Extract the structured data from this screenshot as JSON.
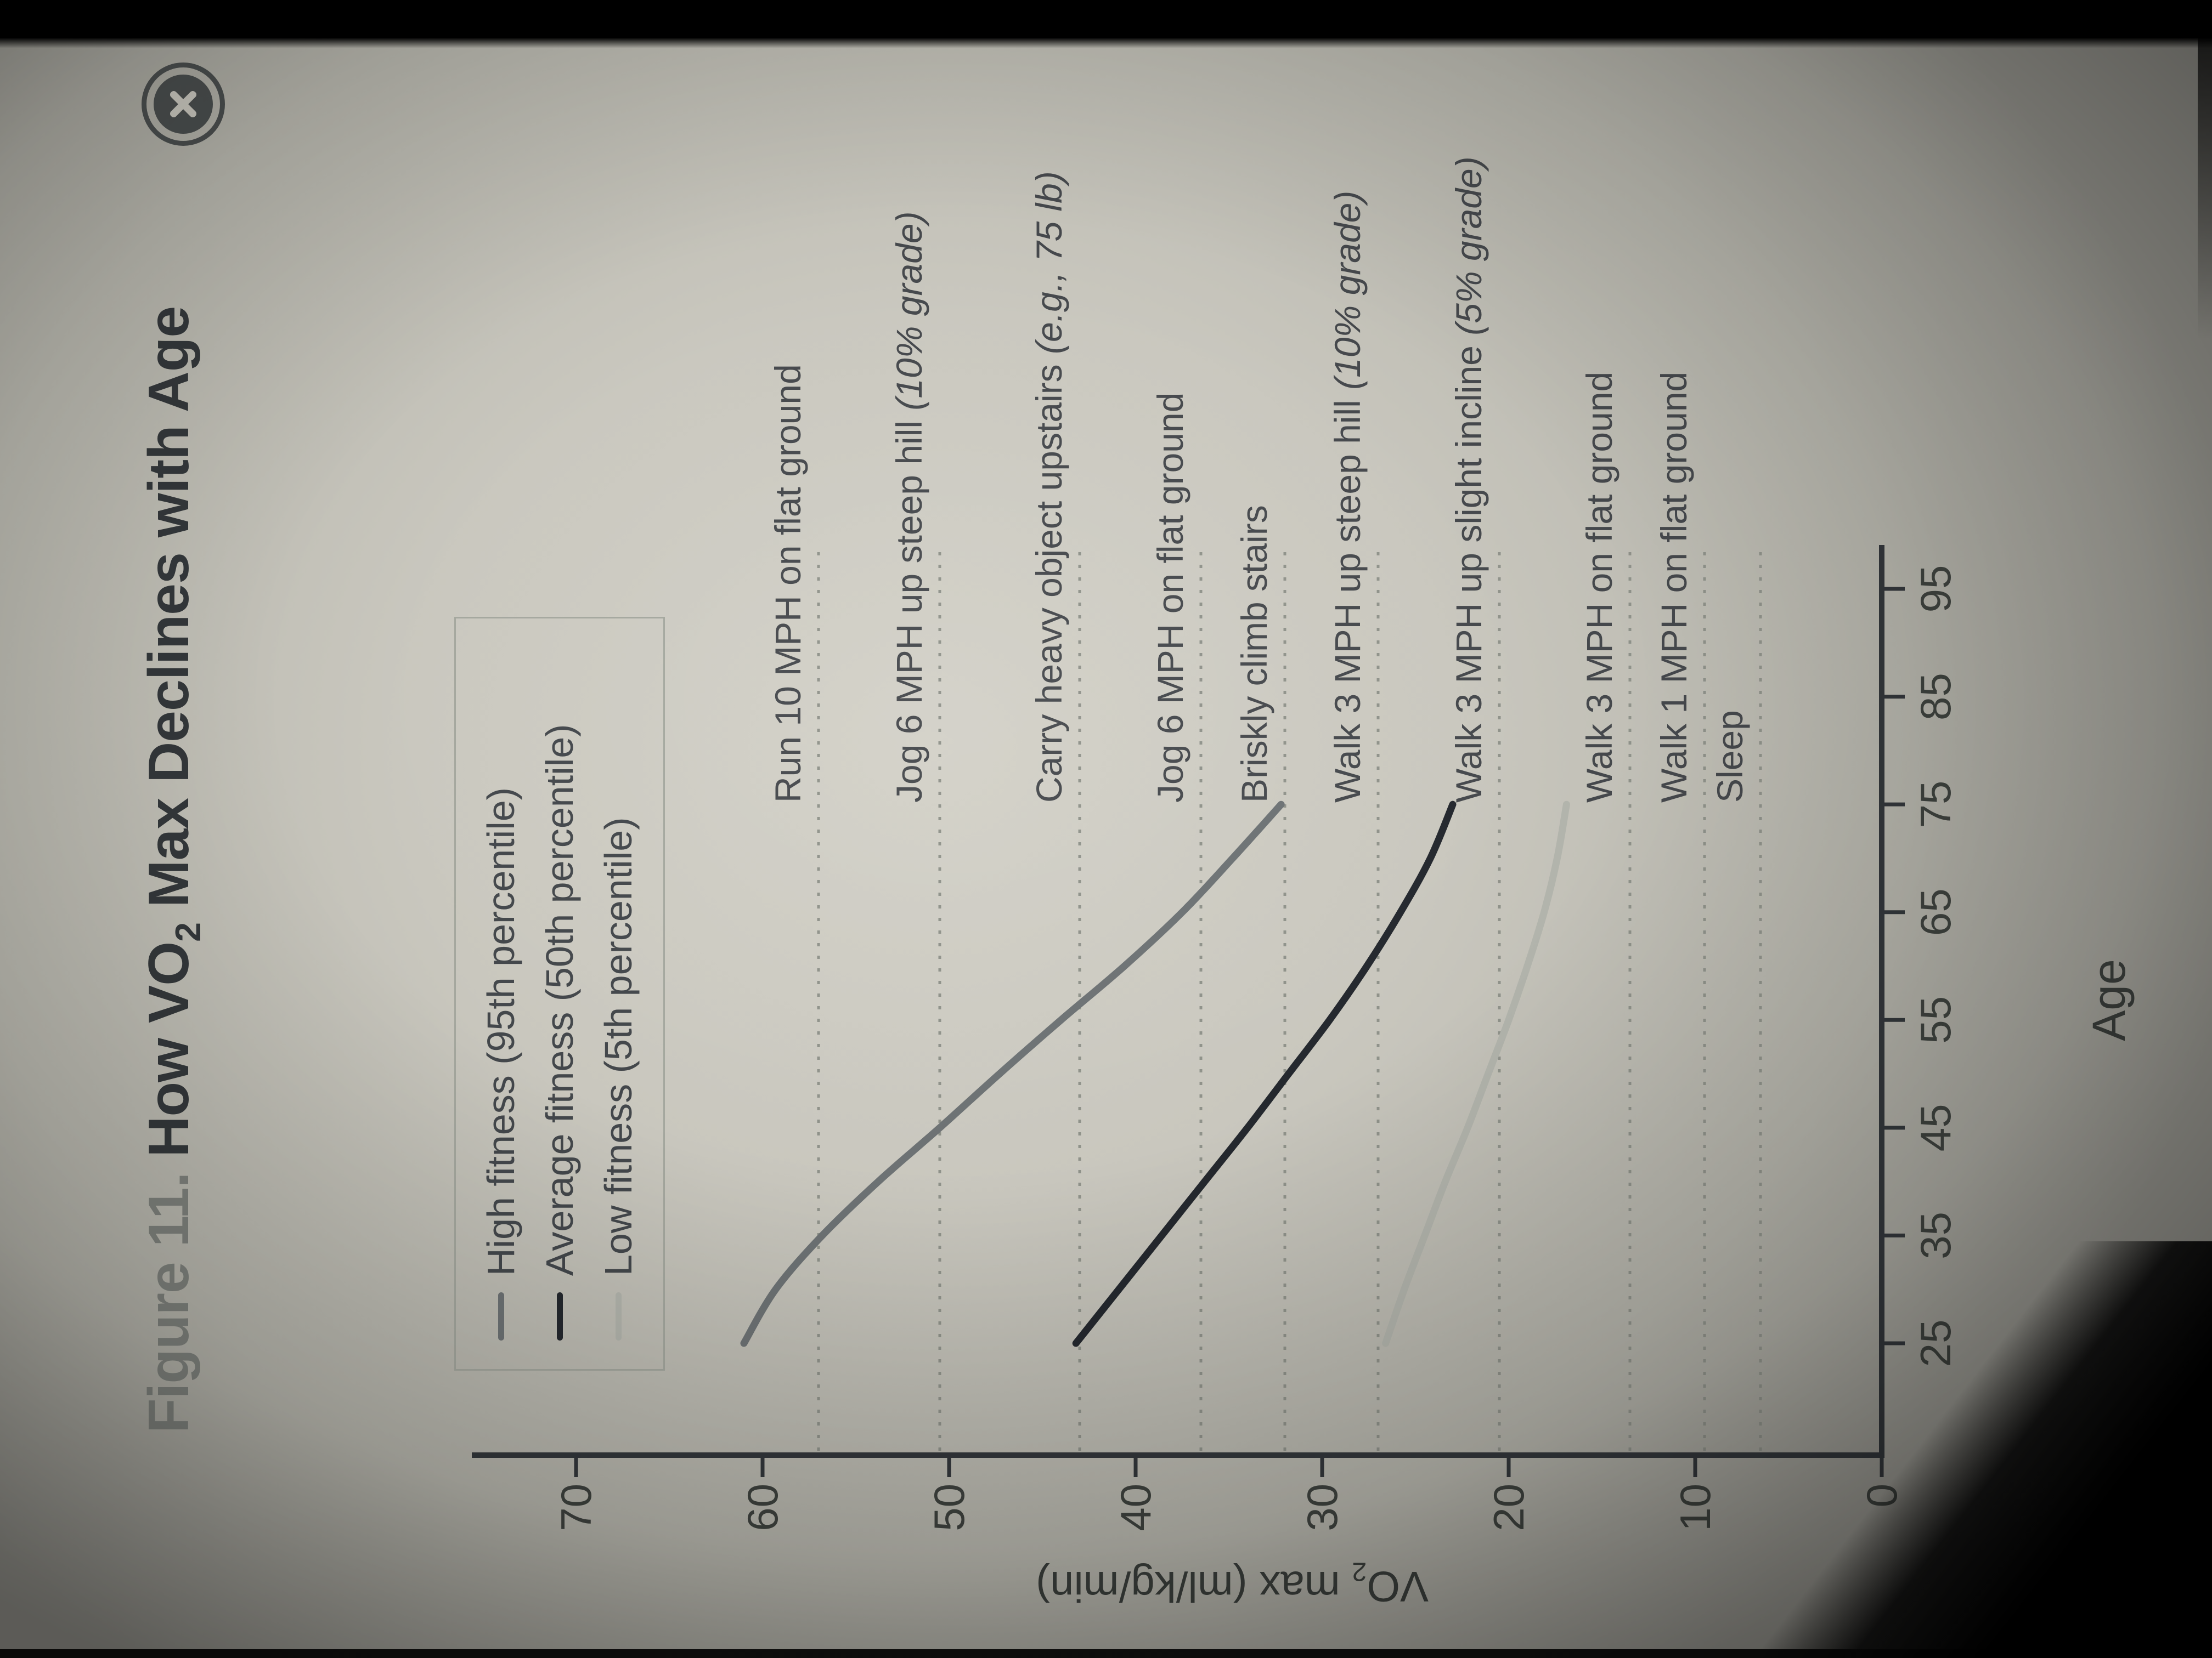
{
  "header": {
    "figure_prefix": "Figure 11.",
    "title_pre": " How VO",
    "title_sub": "2",
    "title_post": " Max Declines with Age",
    "close_icon": "x-circle"
  },
  "legend": {
    "items": [
      {
        "label": "High fitness (95th percentile)",
        "color": "#6d7274"
      },
      {
        "label": "Average fitness (50th percentile)",
        "color": "#24282e"
      },
      {
        "label": "Low fitness (5th percentile)",
        "color": "#b2b4ac"
      }
    ]
  },
  "chart_data": {
    "type": "line",
    "title": "How VO2 Max Declines with Age",
    "xlabel": "Age",
    "ylabel": "VO2 max (ml/kg/min)",
    "x_axis": {
      "label": "Age",
      "min": 20,
      "max": 98,
      "ticks": [
        25,
        35,
        45,
        55,
        65,
        75,
        85,
        95
      ]
    },
    "y_axis": {
      "label_pre": "VO",
      "label_sub": "2",
      "label_post": " max (ml/kg/min)",
      "min": 0,
      "max": 73,
      "ticks": [
        0,
        10,
        20,
        30,
        40,
        50,
        60,
        70
      ]
    },
    "grid": "off",
    "legend_position": "top-left",
    "reference_lines": [
      {
        "text": "Run 10 MPH on flat ground",
        "italic": "",
        "value": 57
      },
      {
        "text": "Jog 6 MPH up steep hill ",
        "italic": "(10% grade)",
        "value": 50.5
      },
      {
        "text": "Carry heavy object upstairs ",
        "italic": "(e.g., 75 lb)",
        "value": 43
      },
      {
        "text": "Jog 6 MPH on flat ground",
        "italic": "",
        "value": 36.5
      },
      {
        "text": "Briskly climb stairs",
        "italic": "",
        "value": 32
      },
      {
        "text": "Walk 3 MPH up steep hill ",
        "italic": "(10% grade)",
        "value": 27
      },
      {
        "text": "Walk 3 MPH up slight incline ",
        "italic": "(5% grade)",
        "value": 20.5
      },
      {
        "text": "Walk 3 MPH on flat ground",
        "italic": "",
        "value": 13.5
      },
      {
        "text": "Walk 1 MPH on flat ground",
        "italic": "",
        "value": 9.5
      },
      {
        "text": "Sleep",
        "italic": "",
        "value": 6.5
      }
    ],
    "series": [
      {
        "name": "High fitness (95th percentile)",
        "color": "#6d7274",
        "points": [
          [
            25,
            61
          ],
          [
            30,
            59.3
          ],
          [
            35,
            56.8
          ],
          [
            40,
            53.8
          ],
          [
            45,
            50.5
          ],
          [
            50,
            47.3
          ],
          [
            55,
            44
          ],
          [
            60,
            40.6
          ],
          [
            65,
            37.5
          ],
          [
            70,
            34.8
          ],
          [
            75,
            32.2
          ]
        ]
      },
      {
        "name": "Average fitness (50th percentile)",
        "color": "#24282e",
        "points": [
          [
            25,
            43.2
          ],
          [
            30,
            40.9
          ],
          [
            35,
            38.6
          ],
          [
            40,
            36.3
          ],
          [
            45,
            34
          ],
          [
            50,
            31.8
          ],
          [
            55,
            29.6
          ],
          [
            60,
            27.6
          ],
          [
            65,
            25.8
          ],
          [
            70,
            24.2
          ],
          [
            75,
            23
          ]
        ]
      },
      {
        "name": "Low fitness (5th percentile)",
        "color": "#b2b4ac",
        "points": [
          [
            25,
            26.6
          ],
          [
            30,
            25.6
          ],
          [
            35,
            24.5
          ],
          [
            40,
            23.4
          ],
          [
            45,
            22.2
          ],
          [
            50,
            21.1
          ],
          [
            55,
            20
          ],
          [
            60,
            19
          ],
          [
            65,
            18.1
          ],
          [
            70,
            17.4
          ],
          [
            75,
            16.9
          ]
        ]
      }
    ]
  }
}
